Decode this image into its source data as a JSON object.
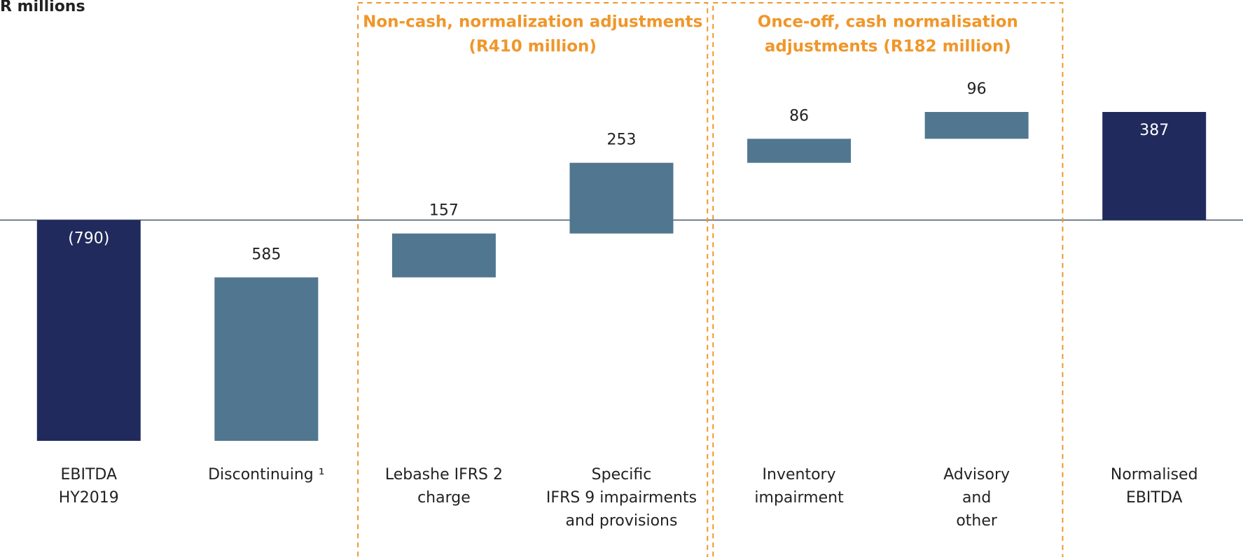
{
  "chart_data": {
    "type": "waterfall",
    "title": "R millions",
    "categories": [
      [
        "EBITDA",
        "HY2019"
      ],
      [
        "Discontinuing ¹"
      ],
      [
        "Lebashe IFRS 2",
        "charge"
      ],
      [
        "Specific",
        "IFRS 9 impairments",
        "and provisions"
      ],
      [
        "Inventory",
        "impairment"
      ],
      [
        "Advisory",
        "and",
        "other"
      ],
      [
        "Normalised",
        "EBITDA"
      ]
    ],
    "values": [
      -790,
      585,
      157,
      253,
      86,
      96,
      387
    ],
    "value_labels": [
      "(790)",
      "585",
      "157",
      "253",
      "86",
      "96",
      "387"
    ],
    "is_total": [
      true,
      false,
      false,
      false,
      false,
      false,
      true
    ],
    "total_color": "#202a5c",
    "delta_color": "#517690",
    "groups": [
      {
        "title": [
          "Non-cash, normalization adjustments",
          "(R410 million)"
        ],
        "color": "#f0962a"
      },
      {
        "title": [
          "Once-off, cash normalisation",
          "adjustments (R182 million)"
        ],
        "color": "#f0962a"
      }
    ]
  }
}
